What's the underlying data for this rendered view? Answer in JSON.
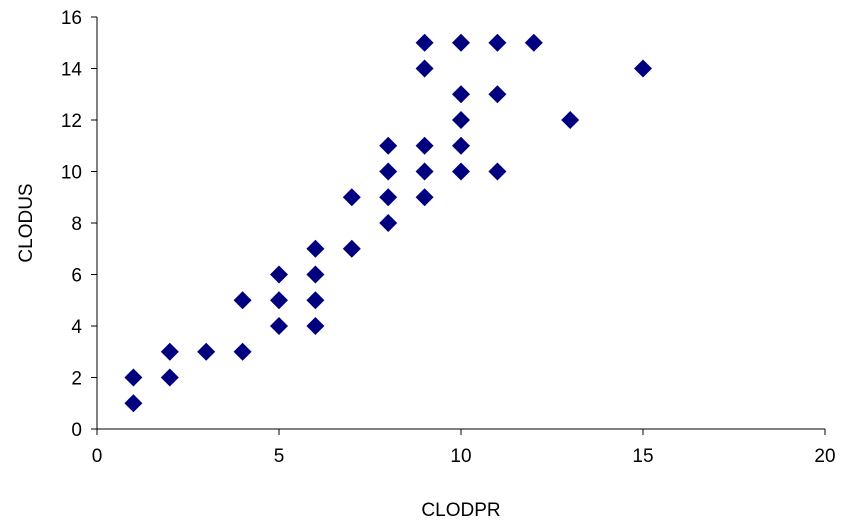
{
  "chart_data": {
    "type": "scatter",
    "title": "",
    "xlabel": "CLODPR",
    "ylabel": "CLODUS",
    "xlim": [
      0,
      20
    ],
    "ylim": [
      0,
      16
    ],
    "x_ticks": [
      0,
      5,
      10,
      15,
      20
    ],
    "y_ticks": [
      0,
      2,
      4,
      6,
      8,
      10,
      12,
      14,
      16
    ],
    "grid": false,
    "legend": "none",
    "marker": "diamond",
    "marker_color": "#00007F",
    "points": [
      {
        "x": 1,
        "y": 1
      },
      {
        "x": 1,
        "y": 2
      },
      {
        "x": 2,
        "y": 2
      },
      {
        "x": 2,
        "y": 3
      },
      {
        "x": 3,
        "y": 3
      },
      {
        "x": 4,
        "y": 3
      },
      {
        "x": 4,
        "y": 5
      },
      {
        "x": 5,
        "y": 4
      },
      {
        "x": 5,
        "y": 5
      },
      {
        "x": 5,
        "y": 6
      },
      {
        "x": 6,
        "y": 4
      },
      {
        "x": 6,
        "y": 5
      },
      {
        "x": 6,
        "y": 6
      },
      {
        "x": 6,
        "y": 7
      },
      {
        "x": 7,
        "y": 7
      },
      {
        "x": 7,
        "y": 9
      },
      {
        "x": 8,
        "y": 8
      },
      {
        "x": 8,
        "y": 9
      },
      {
        "x": 8,
        "y": 10
      },
      {
        "x": 8,
        "y": 11
      },
      {
        "x": 9,
        "y": 9
      },
      {
        "x": 9,
        "y": 10
      },
      {
        "x": 9,
        "y": 11
      },
      {
        "x": 9,
        "y": 14
      },
      {
        "x": 9,
        "y": 15
      },
      {
        "x": 10,
        "y": 10
      },
      {
        "x": 10,
        "y": 11
      },
      {
        "x": 10,
        "y": 12
      },
      {
        "x": 10,
        "y": 13
      },
      {
        "x": 10,
        "y": 15
      },
      {
        "x": 11,
        "y": 10
      },
      {
        "x": 11,
        "y": 13
      },
      {
        "x": 11,
        "y": 15
      },
      {
        "x": 12,
        "y": 15
      },
      {
        "x": 13,
        "y": 12
      },
      {
        "x": 15,
        "y": 14
      }
    ]
  }
}
